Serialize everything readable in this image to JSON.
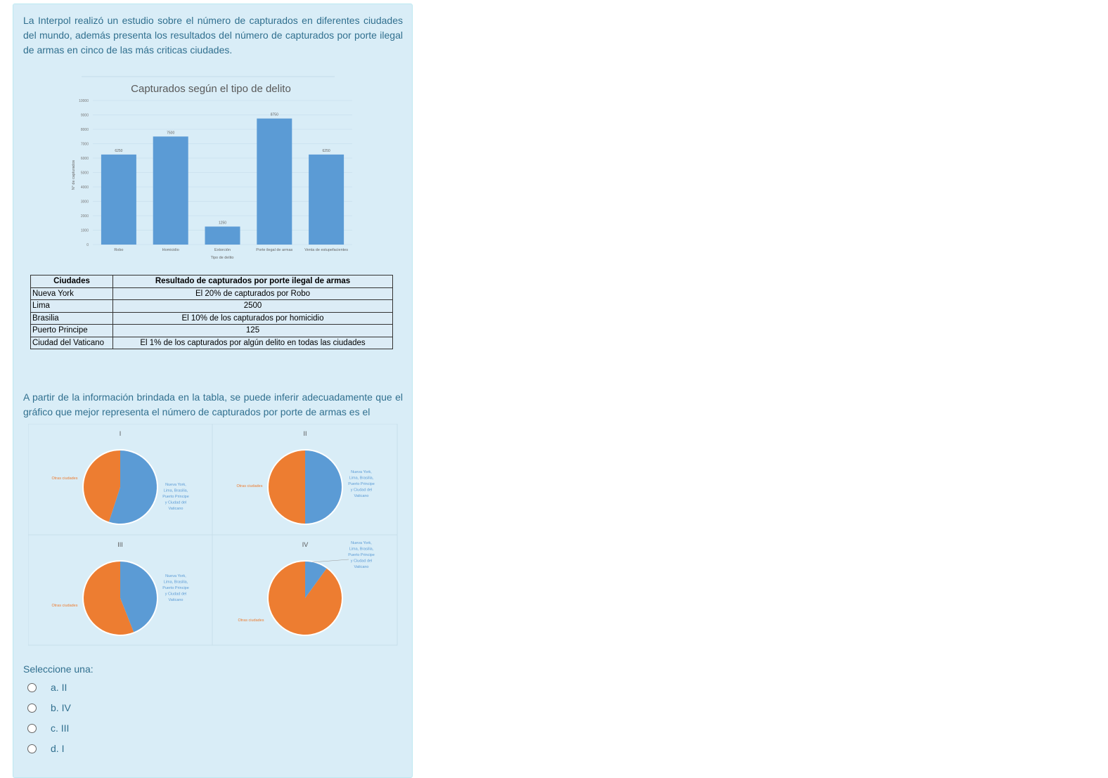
{
  "intro": "La Interpol realizó un estudio sobre el número de capturados en diferentes ciudades del mundo, además presenta los resultados del número de capturados por porte ilegal de armas en cinco de las más criticas ciudades.",
  "chart_data": [
    {
      "type": "bar",
      "title": "Capturados según el tipo de delito",
      "xlabel": "Tipo de delito",
      "ylabel": "N° de capturados",
      "ylim": [
        0,
        10000
      ],
      "yticks": [
        0,
        1000,
        2000,
        3000,
        4000,
        5000,
        6000,
        7000,
        8000,
        9000,
        10000
      ],
      "grid": true,
      "categories": [
        "Robo",
        "Homicidio",
        "Extorción",
        "Porte ilegal de armas",
        "Venta de estupefacientes"
      ],
      "values": [
        6250,
        7500,
        1250,
        8750,
        6250
      ],
      "color": "#5b9bd5"
    },
    {
      "type": "pie",
      "title": "I",
      "labels": [
        "Nueva York, Lima, Brasilia, Puerto Principe y Ciudad del Vaticano",
        "Otras ciudades"
      ],
      "values": [
        55,
        45
      ],
      "colors": [
        "#5b9bd5",
        "#ed7d31"
      ]
    },
    {
      "type": "pie",
      "title": "II",
      "labels": [
        "Nueva York, Lima, Brasilia, Puerto Principe y Ciudad del Vaticano",
        "Otras ciudades"
      ],
      "values": [
        50,
        50
      ],
      "colors": [
        "#5b9bd5",
        "#ed7d31"
      ]
    },
    {
      "type": "pie",
      "title": "III",
      "labels": [
        "Nueva York, Lima, Brasilia, Puerto Principe y Ciudad del Vaticano",
        "Otras ciudades"
      ],
      "values": [
        44,
        56
      ],
      "colors": [
        "#5b9bd5",
        "#ed7d31"
      ]
    },
    {
      "type": "pie",
      "title": "IV",
      "labels": [
        "Nueva York, Lima, Brasilia, Puerto Principe y Ciudad del Vaticano",
        "Otras ciudades"
      ],
      "values": [
        10,
        90
      ],
      "colors": [
        "#5b9bd5",
        "#ed7d31"
      ]
    }
  ],
  "table": {
    "headers": [
      "Ciudades",
      "Resultado de capturados por porte ilegal de armas"
    ],
    "rows": [
      [
        "Nueva York",
        "El 20% de capturados por Robo"
      ],
      [
        "Lima",
        "2500"
      ],
      [
        "Brasilia",
        "El 10% de los capturados por homicidio"
      ],
      [
        "Puerto Principe",
        "125"
      ],
      [
        "Ciudad del Vaticano",
        "El 1% de los capturados por algún delito en todas las ciudades"
      ]
    ]
  },
  "question": "A partir de la información brindada en la tabla, se puede inferir adecuadamente que el gráfico que mejor representa el número de capturados por porte de armas es el",
  "select_label": "Seleccione una:",
  "options": [
    "a. II",
    "b. IV",
    "c. III",
    "d. I"
  ]
}
